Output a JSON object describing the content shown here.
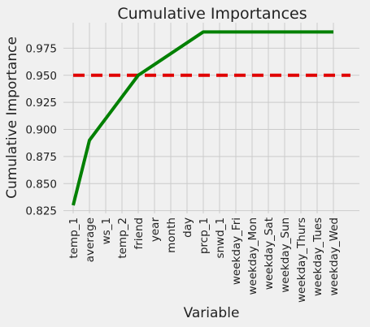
{
  "chart_data": {
    "type": "line",
    "title": "Cumulative Importances",
    "xlabel": "Variable",
    "ylabel": "Cumulative Importance",
    "categories": [
      "temp_1",
      "average",
      "ws_1",
      "temp_2",
      "friend",
      "year",
      "month",
      "day",
      "prcp_1",
      "snwd_1",
      "weekday_Fri",
      "weekday_Mon",
      "weekday_Sat",
      "weekday_Sun",
      "weekday_Thurs",
      "weekday_Tues",
      "weekday_Wed"
    ],
    "series": [
      {
        "values": [
          0.83,
          0.89,
          0.91,
          0.93,
          0.95,
          0.96,
          0.97,
          0.98,
          0.99,
          0.99,
          0.99,
          0.99,
          0.99,
          0.99,
          0.99,
          0.99,
          0.99
        ],
        "color": "#008000"
      }
    ],
    "threshold": {
      "value": 0.95,
      "color": "#e00000",
      "style": "dashed"
    },
    "yticks": [
      "0.825",
      "0.850",
      "0.875",
      "0.900",
      "0.925",
      "0.950",
      "0.975"
    ],
    "ylim": [
      0.8225,
      0.9985
    ],
    "grid": true,
    "legend": "none"
  }
}
